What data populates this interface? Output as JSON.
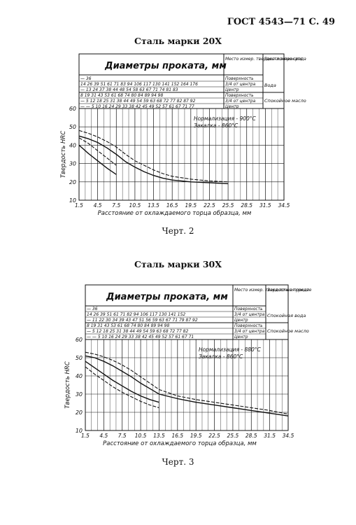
{
  "header": {
    "gost": "ГОСТ 4543—71 С. 49"
  },
  "charts": [
    {
      "title": "Сталь марки 20Х",
      "caption": "Черт. 2",
      "table": {
        "header": "Диаметры проката, мм",
        "place": "Место измер. твердости в прокате",
        "medium": "Зака-лочная среда",
        "group1": {
          "medium": "Вода",
          "rows": [
            {
              "values": "— 36",
              "label": "Поверхность"
            },
            {
              "values": "14 26 39 51 61 71 83 94 106 117 130 141 152 164 176",
              "label": "3/4 от центра"
            },
            {
              "values": "— 13 24 37 38 44 48 54 58 63 67 71 74 81 83",
              "label": "Центр"
            }
          ]
        },
        "group2": {
          "medium": "Спокойное масло",
          "rows": [
            {
              "values": "8 19 31 43 53 61 68 74 80 84 89 94 98",
              "label": "Поверхность"
            },
            {
              "values": "— 5 12 18 25 31 38 44 49 54 59 63 68 72 77 82 87 92",
              "label": "3/4 от центра"
            },
            {
              "values": "— — 5 10 16 24 29 33 38 42 45 49 52 57 61 67 71 77",
              "label": "Центр"
            }
          ]
        }
      },
      "legend": {
        "line1": "Нормализация - 900°С",
        "line2": "Закалка - 860°С"
      },
      "chart_data": {
        "type": "line",
        "ylabel": "Твердость HRC",
        "xlabel": "Расстояние от охлаждаемого торца образца, мм",
        "x_ticks": [
          "1.5",
          "4.5",
          "7.5",
          "10.5",
          "13.5",
          "16.5",
          "19.5",
          "22.5",
          "25.5",
          "28.5",
          "31.5",
          "34.5"
        ],
        "y_ticks": [
          "10",
          "20",
          "30",
          "40",
          "50",
          "60"
        ],
        "xlim": [
          1.5,
          34.5
        ],
        "ylim": [
          10,
          60
        ],
        "series": [
          {
            "x": [
              1.5,
              3,
              4.5,
              6,
              7.5,
              9,
              10.5,
              12,
              13.5,
              15,
              16.5,
              19.5,
              22.5,
              25.5
            ],
            "y": [
              48,
              46.5,
              44.5,
              42,
              39,
              35,
              31.5,
              29,
              26.5,
              24.5,
              23,
              21.5,
              20.5,
              20
            ]
          },
          {
            "x": [
              1.5,
              3,
              4.5,
              6,
              7.5,
              9,
              10.5,
              12,
              13.5,
              15,
              16.5,
              19.5,
              22.5,
              25.5
            ],
            "y": [
              45,
              43.5,
              41.5,
              38.5,
              35,
              31,
              28,
              25.5,
              23.5,
              22,
              21,
              20,
              19.5,
              19
            ]
          },
          {
            "x": [
              1.5,
              3,
              4.5,
              6,
              7.5
            ],
            "y": [
              44,
              41,
              37,
              33,
              29
            ]
          },
          {
            "x": [
              1.5,
              3,
              4.5,
              6,
              7.5
            ],
            "y": [
              40,
              35.5,
              31.5,
              27.5,
              24
            ]
          }
        ]
      }
    },
    {
      "title": "Сталь марки 30Х",
      "caption": "Черт. 3",
      "table": {
        "header": "Диаметры проката, мм",
        "place": "Место измер. твердости в прокате",
        "medium": "Зака-лочная среда",
        "group1": {
          "medium": "Спокойная вода",
          "rows": [
            {
              "values": "— 36",
              "label": "Поверхность"
            },
            {
              "values": "14 26 39 51 61 71 82 94 106 117 130 141 152",
              "label": "3/4 от центра"
            },
            {
              "values": "— 11 22 30 34 39 43 47 51 56 59 63 67 71 79 87 92",
              "label": "Центр"
            }
          ]
        },
        "group2": {
          "medium": "Спокойное масло",
          "rows": [
            {
              "values": "8 19 31 43 53 61 68 74 80 84 89 94 98",
              "label": "Поверхность"
            },
            {
              "values": "— 5 12 18 25 31 38 44 49 54 59 63 68 72 77 82",
              "label": "3/4 от центра"
            },
            {
              "values": "— — 5 10 16 24 29 33 38 42 45 49 52 57 61 67 71",
              "label": "Центр"
            }
          ]
        }
      },
      "legend": {
        "line1": "Нормализация - 880°С",
        "line2": "Закалка - 860°С"
      },
      "chart_data": {
        "type": "line",
        "ylabel": "Твердость HRC",
        "xlabel": "Расстояние от охлаждаемого торца образца, мм",
        "x_ticks": [
          "1.5",
          "4.5",
          "7.5",
          "10.5",
          "13.5",
          "16.5",
          "19.5",
          "22.5",
          "25.5",
          "28.5",
          "31.5",
          "34.5"
        ],
        "y_ticks": [
          "10",
          "20",
          "30",
          "40",
          "50",
          "60"
        ],
        "xlim": [
          1.5,
          34.5
        ],
        "ylim": [
          10,
          60
        ],
        "series": [
          {
            "x": [
              1.5,
              3,
              4.5,
              6,
              7.5,
              9,
              10.5,
              12,
              13.5,
              16.5,
              19.5,
              22.5,
              25.5,
              28.5,
              31.5,
              34.5
            ],
            "y": [
              53,
              52,
              50.5,
              48.5,
              46,
              43,
              39.5,
              36,
              32.5,
              29,
              27,
              25.5,
              24,
              22.5,
              21,
              19
            ]
          },
          {
            "x": [
              1.5,
              3,
              4.5,
              6,
              7.5,
              9,
              10.5,
              12,
              13.5,
              16.5,
              19.5,
              22.5,
              25.5,
              28.5,
              31.5,
              34.5
            ],
            "y": [
              51,
              50,
              48,
              45.5,
              42.5,
              39.5,
              36,
              33,
              30,
              27.5,
              25.5,
              24,
              22.5,
              21,
              19.5,
              18
            ]
          },
          {
            "x": [
              1.5,
              3,
              4.5,
              6,
              7.5,
              9,
              10.5,
              12,
              13.5
            ],
            "y": [
              48,
              44.5,
              41,
              37.5,
              34.5,
              31.5,
              29,
              27,
              25.5
            ]
          },
          {
            "x": [
              1.5,
              3,
              4.5,
              6,
              7.5,
              9,
              10.5,
              12,
              13.5
            ],
            "y": [
              45,
              41,
              37.5,
              34,
              31,
              28.5,
              26,
              24,
              22.5
            ]
          }
        ]
      }
    }
  ]
}
